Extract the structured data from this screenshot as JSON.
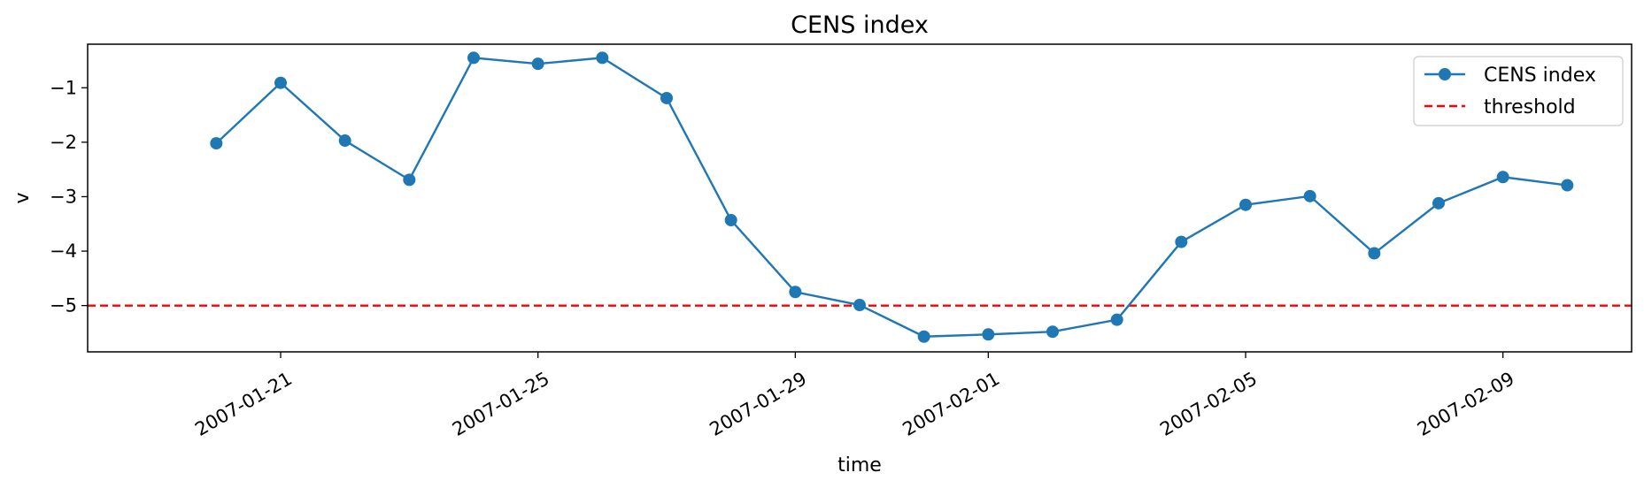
{
  "chart_data": {
    "type": "line",
    "title": "CENS index",
    "xlabel": "time",
    "ylabel": "v",
    "x_type": "date",
    "xlim": [
      "2007-01-18",
      "2007-02-11"
    ],
    "ylim": [
      -5.85,
      -0.2
    ],
    "x_ticks": [
      "2007-01-21",
      "2007-01-25",
      "2007-01-29",
      "2007-02-01",
      "2007-02-05",
      "2007-02-09"
    ],
    "y_ticks": [
      -1,
      -2,
      -3,
      -4,
      -5
    ],
    "grid": false,
    "legend": "top-right",
    "series": [
      {
        "name": "CENS index",
        "color": "#1f77b4",
        "marker": "circle",
        "line_style": "solid",
        "x": [
          "2007-01-20",
          "2007-01-21",
          "2007-01-22",
          "2007-01-23",
          "2007-01-24",
          "2007-01-25",
          "2007-01-26",
          "2007-01-27",
          "2007-01-28",
          "2007-01-29",
          "2007-01-30",
          "2007-01-31",
          "2007-02-01",
          "2007-02-02",
          "2007-02-03",
          "2007-02-04",
          "2007-02-05",
          "2007-02-06",
          "2007-02-07",
          "2007-02-08",
          "2007-02-09",
          "2007-02-10"
        ],
        "y": [
          -2.02,
          -0.91,
          -1.97,
          -2.69,
          -0.45,
          -0.56,
          -0.45,
          -1.19,
          -3.43,
          -4.75,
          -4.99,
          -5.57,
          -5.53,
          -5.48,
          -5.26,
          -3.83,
          -3.15,
          -2.99,
          -4.04,
          -3.12,
          -2.64,
          -2.79
        ]
      },
      {
        "name": "threshold",
        "color": "#ff0000",
        "line_style": "dashed",
        "y_constant": -5
      }
    ]
  }
}
